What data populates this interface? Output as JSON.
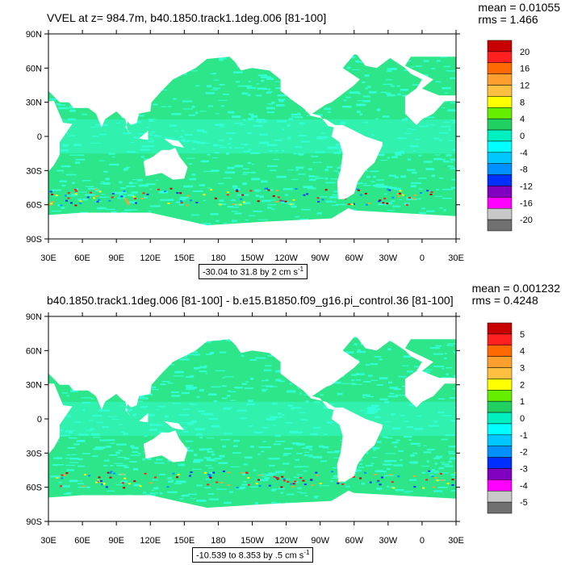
{
  "panels": [
    {
      "title": "VVEL at z= 984.7m, b40.1850.track1.1deg.006 [81-100]",
      "mean": "mean = 0.01055",
      "rms": "rms = 1.466",
      "range_label": "-30.04 to 31.8 by 2 cm s",
      "range_sup": "-1",
      "colorbar_labels": [
        "20",
        "16",
        "12",
        "8",
        "4",
        "0",
        "-4",
        "-8",
        "-12",
        "-16",
        "-20"
      ]
    },
    {
      "title": "b40.1850.track1.1deg.006 [81-100] - b.e15.B1850.f09_g16.pi_control.36 [81-100]",
      "mean": "mean = 0.001232",
      "rms": "rms = 0.4248",
      "range_label": "-10.539 to 8.353 by .5 cm s",
      "range_sup": "-1",
      "colorbar_labels": [
        "5",
        "4",
        "3",
        "2",
        "1",
        "0",
        "-1",
        "-2",
        "-3",
        "-4",
        "-5"
      ]
    }
  ],
  "lat_labels": [
    "90N",
    "60N",
    "30N",
    "0",
    "30S",
    "60S",
    "90S"
  ],
  "lon_labels": [
    "30E",
    "60E",
    "90E",
    "120E",
    "150E",
    "180",
    "150W",
    "120W",
    "90W",
    "60W",
    "30W",
    "0",
    "30E"
  ],
  "colors": {
    "land": "#ffffff",
    "ocean_main": "#2ee68a",
    "ocean_light": "#33ffd6",
    "colorbar": [
      "#c80000",
      "#ff2020",
      "#ff6a00",
      "#ff9f2e",
      "#ffbf40",
      "#ffff00",
      "#66ee00",
      "#20d060",
      "#00f0c0",
      "#00ffff",
      "#00c8ff",
      "#0090ff",
      "#0030ff",
      "#8000c0",
      "#ff00ff",
      "#c8c8c8",
      "#707070"
    ]
  }
}
